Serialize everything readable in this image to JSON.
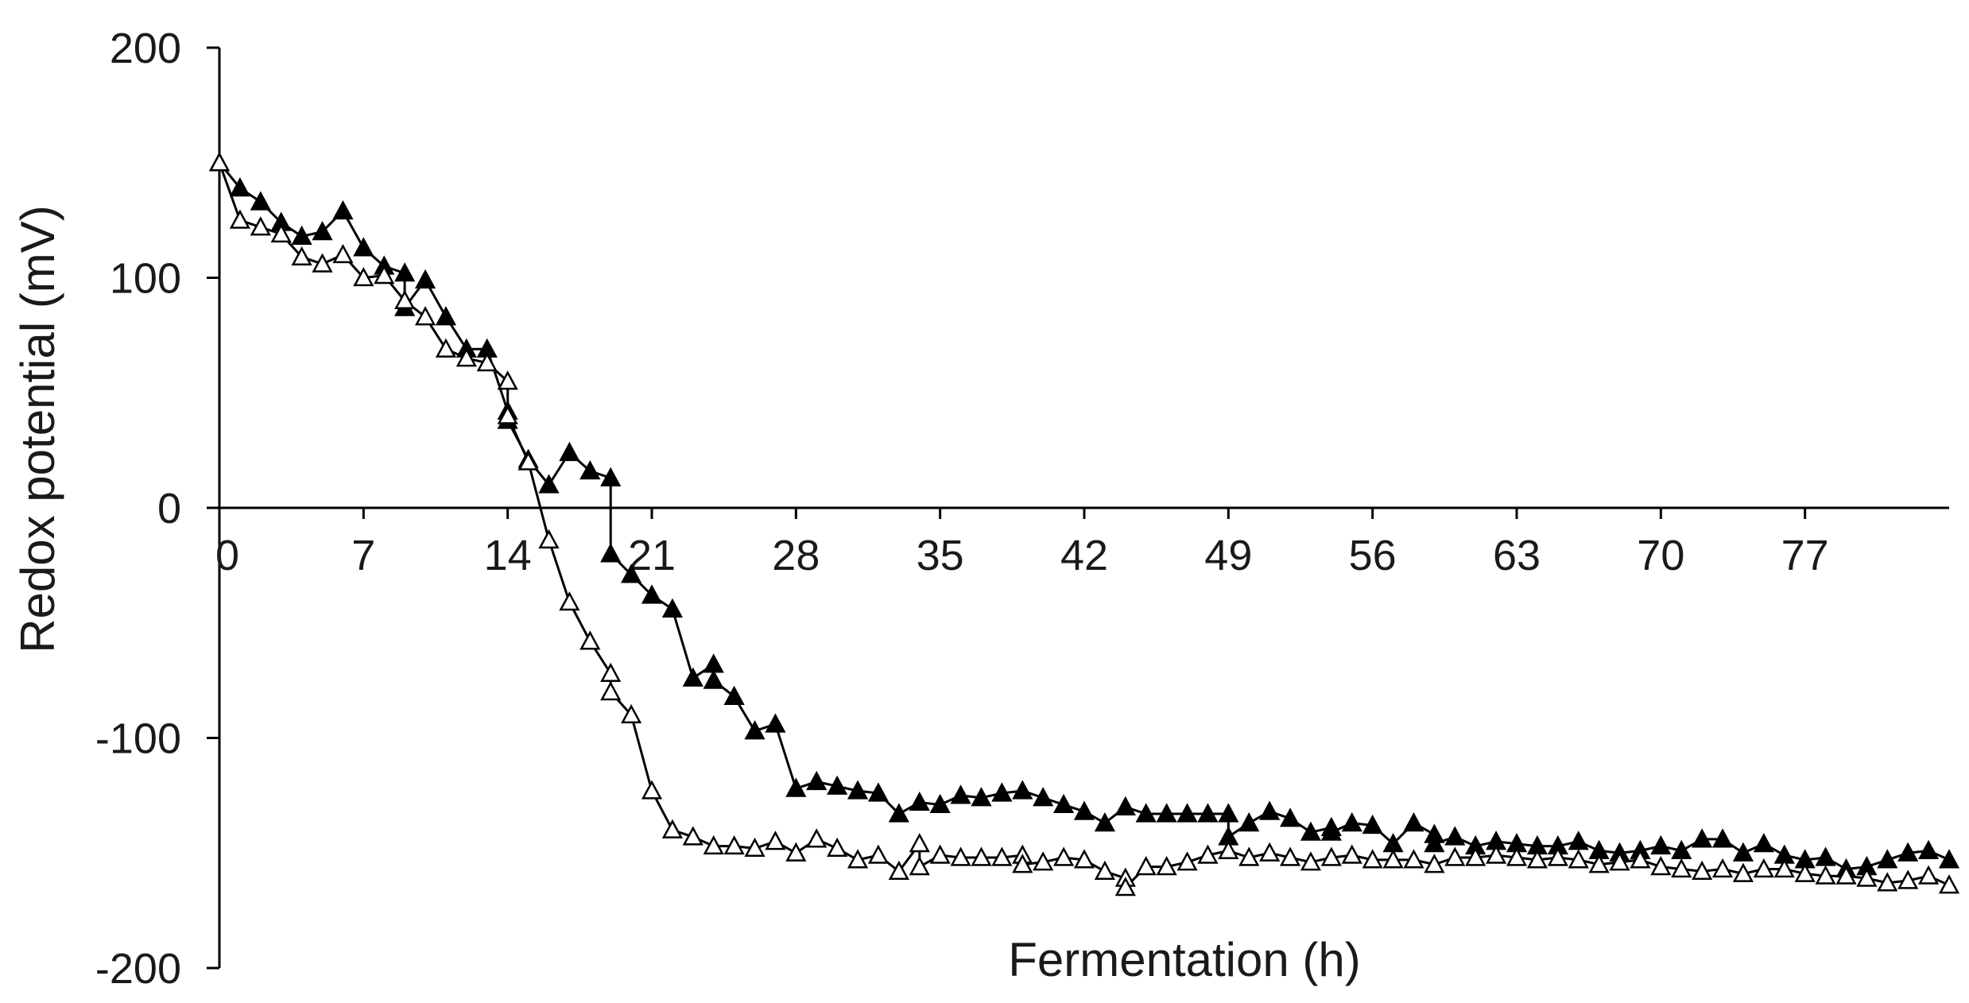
{
  "chart_data": {
    "type": "line",
    "title": "",
    "xlabel": "Fermentation  (h)",
    "ylabel": "Redox potential (mV)",
    "xlim": [
      0,
      84
    ],
    "ylim": [
      -200,
      200
    ],
    "x_ticks": [
      0,
      7,
      14,
      21,
      28,
      35,
      42,
      49,
      56,
      63,
      70,
      77
    ],
    "y_ticks": [
      200,
      100,
      0,
      -100,
      -200
    ],
    "grid": false,
    "legend": "none",
    "series": [
      {
        "marker": "filled-triangle",
        "color": "#000000",
        "x": [
          0,
          1,
          2,
          3,
          4,
          5,
          6,
          7,
          8,
          9,
          9,
          10,
          11,
          12,
          13,
          14,
          14,
          15,
          16,
          17,
          18,
          19,
          19,
          20,
          21,
          22,
          23,
          24,
          24,
          25,
          26,
          27,
          28,
          29,
          30,
          31,
          32,
          33,
          34,
          35,
          36,
          37,
          38,
          39,
          40,
          41,
          42,
          43,
          44,
          45,
          46,
          47,
          48,
          49,
          49,
          50,
          51,
          52,
          53,
          54,
          54,
          55,
          56,
          57,
          58,
          59,
          59,
          60,
          61,
          62,
          63,
          64,
          65,
          66,
          67,
          68,
          69,
          70,
          71,
          72,
          73,
          74,
          75,
          76,
          77,
          78,
          79,
          80,
          81,
          82,
          83,
          84
        ],
        "y": [
          150,
          139,
          133,
          124,
          118,
          120,
          129,
          113,
          105,
          102,
          87,
          99,
          83,
          69,
          69,
          42,
          38,
          21,
          10,
          24,
          16,
          13,
          -20,
          -29,
          -38,
          -44,
          -74,
          -68,
          -75,
          -82,
          -97,
          -94,
          -122,
          -119,
          -121,
          -123,
          -124,
          -133,
          -128,
          -129,
          -125,
          -126,
          -124,
          -123,
          -126,
          -129,
          -132,
          -137,
          -130,
          -133,
          -133,
          -133,
          -133,
          -133,
          -143,
          -137,
          -132,
          -135,
          -141,
          -139,
          -141,
          -137,
          -138,
          -146,
          -137,
          -142,
          -146,
          -143,
          -147,
          -145,
          -146,
          -147,
          -147,
          -145,
          -149,
          -150,
          -149,
          -147,
          -149,
          -144,
          -144,
          -150,
          -146,
          -151,
          -153,
          -152,
          -157,
          -156,
          -153,
          -150,
          -149,
          -153
        ]
      },
      {
        "marker": "open-triangle",
        "color": "#000000",
        "x": [
          0,
          1,
          2,
          3,
          4,
          5,
          6,
          7,
          8,
          9,
          10,
          11,
          12,
          13,
          14,
          14,
          15,
          16,
          17,
          18,
          19,
          19,
          20,
          21,
          22,
          23,
          24,
          25,
          26,
          27,
          28,
          29,
          30,
          31,
          32,
          33,
          34,
          34,
          35,
          36,
          37,
          38,
          39,
          39,
          40,
          41,
          42,
          43,
          44,
          44,
          45,
          46,
          47,
          48,
          49,
          50,
          51,
          52,
          53,
          54,
          55,
          56,
          57,
          58,
          59,
          60,
          61,
          62,
          63,
          64,
          65,
          66,
          67,
          68,
          69,
          70,
          71,
          72,
          73,
          74,
          75,
          76,
          77,
          78,
          79,
          80,
          81,
          82,
          83,
          84
        ],
        "y": [
          150,
          125,
          122,
          119,
          109,
          106,
          110,
          100,
          101,
          90,
          83,
          69,
          65,
          63,
          55,
          40,
          20,
          -14,
          -41,
          -58,
          -72,
          -80,
          -90,
          -123,
          -140,
          -143,
          -147,
          -147,
          -148,
          -145,
          -150,
          -144,
          -148,
          -153,
          -151,
          -158,
          -146,
          -156,
          -151,
          -152,
          -152,
          -152,
          -151,
          -155,
          -154,
          -152,
          -153,
          -158,
          -161,
          -165,
          -156,
          -156,
          -154,
          -151,
          -149,
          -152,
          -150,
          -152,
          -154,
          -152,
          -151,
          -153,
          -153,
          -153,
          -155,
          -152,
          -152,
          -151,
          -152,
          -153,
          -152,
          -153,
          -155,
          -154,
          -153,
          -156,
          -157,
          -158,
          -157,
          -159,
          -157,
          -157,
          -159,
          -160,
          -160,
          -161,
          -163,
          -162,
          -160,
          -164
        ]
      }
    ]
  }
}
